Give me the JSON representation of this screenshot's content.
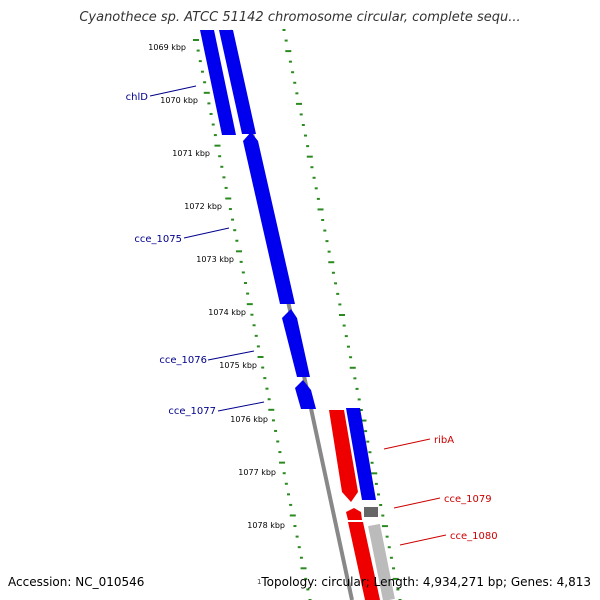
{
  "title": "Cyanothece sp. ATCC 51142 chromosome circular, complete sequ...",
  "footer": {
    "accession": "Accession: NC_010546",
    "topology": "Topology: circular; Length: 4,934,271 bp; Genes: 4,813",
    "mark": "1"
  },
  "colors": {
    "forward_gene": "#0000ee",
    "reverse_gene": "#ee0000",
    "scale_ticks": "#2a8a1f",
    "backbone": "#888888",
    "forward_label": "#00008b",
    "reverse_label": "#cc0000",
    "tick_label": "#000000"
  },
  "scale": {
    "unit": "kbp",
    "ticks": [
      "1069 kbp",
      "1070 kbp",
      "1071 kbp",
      "1072 kbp",
      "1073 kbp",
      "1074 kbp",
      "1075 kbp",
      "1076 kbp",
      "1077 kbp",
      "1078 kbp"
    ]
  },
  "gene_labels": [
    {
      "name": "chlD",
      "strand": "forward"
    },
    {
      "name": "cce_1075",
      "strand": "forward"
    },
    {
      "name": "cce_1076",
      "strand": "forward"
    },
    {
      "name": "cce_1077",
      "strand": "forward"
    },
    {
      "name": "ribA",
      "strand": "reverse"
    },
    {
      "name": "cce_1079",
      "strand": "reverse"
    },
    {
      "name": "cce_1080",
      "strand": "reverse"
    }
  ]
}
